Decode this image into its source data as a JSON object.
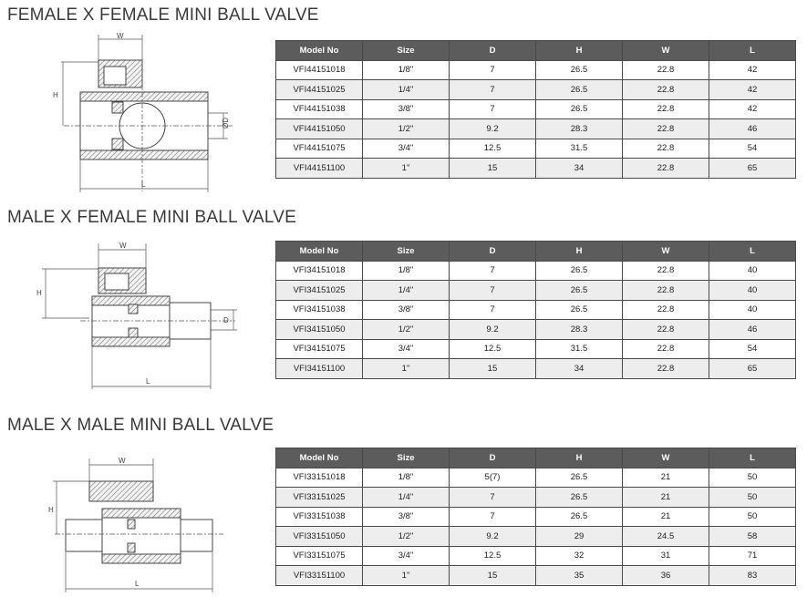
{
  "columns": [
    "Model No",
    "Size",
    "D",
    "H",
    "W",
    "L"
  ],
  "drawing_labels": {
    "w": "W",
    "h": "H",
    "d": "D",
    "od": "ØD",
    "l": "L"
  },
  "sections": [
    {
      "title": "FEMALE X FEMALE MINI BALL VALVE",
      "rows": [
        [
          "VFI44151018",
          "1/8\"",
          "7",
          "26.5",
          "22.8",
          "42"
        ],
        [
          "VFI44151025",
          "1/4\"",
          "7",
          "26.5",
          "22.8",
          "42"
        ],
        [
          "VFI44151038",
          "3/8\"",
          "7",
          "26.5",
          "22.8",
          "42"
        ],
        [
          "VFI44151050",
          "1/2\"",
          "9.2",
          "28.3",
          "22.8",
          "46"
        ],
        [
          "VFI44151075",
          "3/4\"",
          "12.5",
          "31.5",
          "22.8",
          "54"
        ],
        [
          "VFI44151100",
          "1\"",
          "15",
          "34",
          "22.8",
          "65"
        ]
      ]
    },
    {
      "title": "MALE X FEMALE MINI BALL VALVE",
      "rows": [
        [
          "VFI34151018",
          "1/8\"",
          "7",
          "26.5",
          "22.8",
          "40"
        ],
        [
          "VFI34151025",
          "1/4\"",
          "7",
          "26.5",
          "22.8",
          "40"
        ],
        [
          "VFI34151038",
          "3/8\"",
          "7",
          "26.5",
          "22.8",
          "40"
        ],
        [
          "VFI34151050",
          "1/2\"",
          "9.2",
          "28.3",
          "22.8",
          "46"
        ],
        [
          "VFI34151075",
          "3/4\"",
          "12.5",
          "31.5",
          "22.8",
          "54"
        ],
        [
          "VFI34151100",
          "1\"",
          "15",
          "34",
          "22.8",
          "65"
        ]
      ]
    },
    {
      "title": "MALE X MALE MINI BALL VALVE",
      "rows": [
        [
          "VFI33151018",
          "1/8\"",
          "5(7)",
          "26.5",
          "21",
          "50"
        ],
        [
          "VFI33151025",
          "1/4\"",
          "7",
          "26.5",
          "21",
          "50"
        ],
        [
          "VFI33151038",
          "3/8\"",
          "7",
          "26.5",
          "21",
          "50"
        ],
        [
          "VFI33151050",
          "1/2\"",
          "9.2",
          "29",
          "24.5",
          "58"
        ],
        [
          "VFI33151075",
          "3/4\"",
          "12.5",
          "32",
          "31",
          "71"
        ],
        [
          "VFI33151100",
          "1\"",
          "15",
          "35",
          "36",
          "83"
        ]
      ]
    }
  ]
}
